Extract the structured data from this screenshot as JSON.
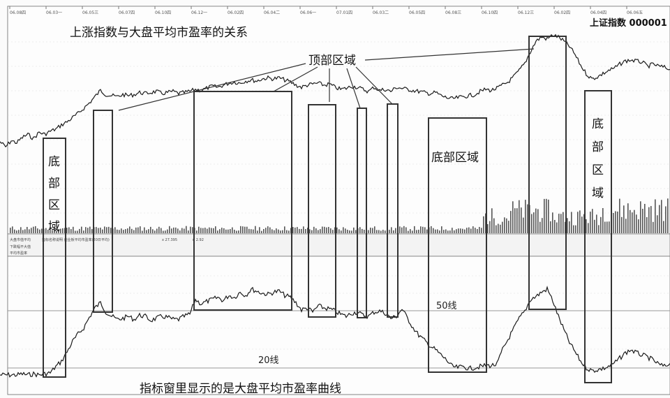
{
  "chart_data": {
    "type": "line",
    "title": "上涨指数与大盘平均市盈率的关系",
    "index_label": "上证指数 000001",
    "top_region_label": "顶部区域",
    "bottom_region_label": "底部区域",
    "line_50_label": "50线",
    "line_20_label": "20线",
    "bottom_caption": "指标窗里显示的是大盘平均市盈率曲线",
    "grid": true,
    "price_panel": {
      "ylim": [
        0,
        1
      ],
      "units": "relative"
    },
    "pe_panel": {
      "ylim": [
        0,
        1
      ],
      "units": "relative",
      "reference_lines": [
        50,
        20
      ]
    },
    "x": [
      0,
      8,
      16,
      24,
      32,
      40,
      48,
      56,
      64,
      72,
      80,
      88,
      96,
      104,
      112,
      120,
      128,
      136,
      144,
      152,
      160,
      168,
      176,
      184,
      192,
      200,
      208,
      216,
      224,
      232,
      240,
      248,
      256,
      264,
      272,
      280,
      288,
      296,
      304,
      312,
      320,
      328,
      336,
      344,
      352,
      360,
      368,
      376,
      384,
      392,
      400,
      408,
      416,
      424,
      432,
      440,
      448,
      456,
      464,
      472,
      480,
      488,
      496,
      504,
      512,
      520,
      528,
      536,
      544,
      552,
      560,
      568,
      576,
      584,
      592,
      600,
      608,
      616,
      624,
      632,
      640,
      648,
      656,
      664,
      672,
      680,
      688,
      696,
      704,
      712,
      720,
      728,
      736,
      744,
      752,
      760,
      768,
      776,
      784,
      792,
      800,
      808,
      816,
      824,
      832,
      840,
      848,
      856,
      864,
      872,
      880,
      888,
      896,
      904,
      912,
      920,
      928,
      936,
      944,
      952,
      960
    ],
    "series": [
      {
        "role": "price",
        "values": [
          0.38,
          0.33,
          0.39,
          0.37,
          0.42,
          0.45,
          0.41,
          0.47,
          0.45,
          0.48,
          0.5,
          0.54,
          0.57,
          0.61,
          0.65,
          0.7,
          0.75,
          0.81,
          0.87,
          0.83,
          0.82,
          0.81,
          0.83,
          0.82,
          0.83,
          0.85,
          0.84,
          0.85,
          0.86,
          0.84,
          0.85,
          0.86,
          0.84,
          0.85,
          0.86,
          0.88,
          0.87,
          0.89,
          0.91,
          0.9,
          0.92,
          0.94,
          0.95,
          0.94,
          0.96,
          0.97,
          0.96,
          0.98,
          0.99,
          0.98,
          0.99,
          0.97,
          0.95,
          0.92,
          0.9,
          0.92,
          0.93,
          0.94,
          0.92,
          0.93,
          0.9,
          0.88,
          0.89,
          0.91,
          0.9,
          0.88,
          0.86,
          0.9,
          0.87,
          0.88,
          0.86,
          0.9,
          0.89,
          0.88,
          0.87,
          0.86,
          0.85,
          0.84,
          0.85,
          0.82,
          0.8,
          0.79,
          0.8,
          0.81,
          0.82,
          0.83,
          0.86,
          0.88,
          0.87,
          0.89,
          0.92,
          0.95,
          1.0,
          1.06,
          1.13,
          1.24,
          1.34,
          1.38,
          1.36,
          1.4,
          1.38,
          1.34,
          1.29,
          1.21,
          1.11,
          1.03,
          0.98,
          1.0,
          1.03,
          1.06,
          1.08,
          1.12,
          1.15,
          1.16,
          1.15,
          1.14,
          1.1,
          1.12,
          1.1,
          1.09,
          1.07
        ]
      },
      {
        "role": "pe",
        "values": [
          0.02,
          0.02,
          0.02,
          0.02,
          0.03,
          0.02,
          0.03,
          0.02,
          0.03,
          0.04,
          0.1,
          0.15,
          0.24,
          0.34,
          0.41,
          0.47,
          0.57,
          0.66,
          0.71,
          0.62,
          0.58,
          0.55,
          0.56,
          0.58,
          0.55,
          0.59,
          0.58,
          0.54,
          0.56,
          0.58,
          0.57,
          0.55,
          0.55,
          0.58,
          0.6,
          0.74,
          0.7,
          0.72,
          0.74,
          0.76,
          0.73,
          0.78,
          0.76,
          0.81,
          0.78,
          0.84,
          0.82,
          0.8,
          0.79,
          0.81,
          0.82,
          0.78,
          0.76,
          0.71,
          0.64,
          0.66,
          0.62,
          0.68,
          0.66,
          0.65,
          0.63,
          0.6,
          0.58,
          0.61,
          0.62,
          0.59,
          0.58,
          0.62,
          0.63,
          0.61,
          0.56,
          0.58,
          0.65,
          0.56,
          0.47,
          0.4,
          0.35,
          0.3,
          0.26,
          0.21,
          0.16,
          0.1,
          0.09,
          0.1,
          0.08,
          0.09,
          0.1,
          0.11,
          0.11,
          0.12,
          0.26,
          0.36,
          0.46,
          0.56,
          0.63,
          0.74,
          0.77,
          0.81,
          0.84,
          0.73,
          0.58,
          0.45,
          0.33,
          0.24,
          0.15,
          0.09,
          0.06,
          0.07,
          0.08,
          0.1,
          0.13,
          0.18,
          0.23,
          0.26,
          0.23,
          0.21,
          0.19,
          0.16,
          0.12,
          0.1,
          0.13
        ]
      }
    ],
    "date_ticks": [
      "06.08四",
      "06.03一",
      "06.05三",
      "06.07四",
      "06.10四",
      "06.12一",
      "06.02四",
      "06.04二",
      "06.06一",
      "07.01四",
      "06.03二",
      "06.05四",
      "06.08三",
      "06.10四",
      "06.12三",
      "06.02四",
      "06.04四",
      "06.06五"
    ],
    "legend_items": [
      "大盘市值平均",
      "指标名称说明 创业板平均市盈率(20日平均)",
      "x 27.395",
      "n 2.92"
    ],
    "side_labels": [
      "下跌幅不大值",
      "平均市盈率"
    ]
  }
}
